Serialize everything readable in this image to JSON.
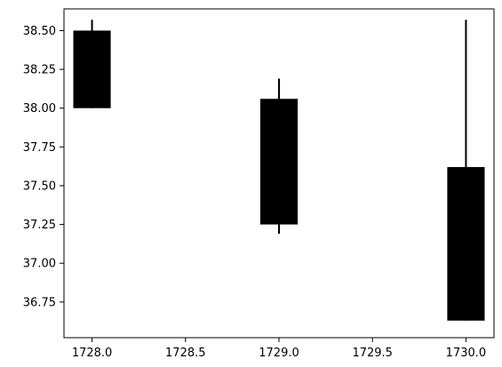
{
  "chart_data": {
    "type": "candlestick",
    "title": "",
    "xlabel": "",
    "ylabel": "",
    "xlim": [
      1727.85,
      1730.15
    ],
    "ylim": [
      36.52,
      38.64
    ],
    "x_ticks": [
      1728.0,
      1728.5,
      1729.0,
      1729.5,
      1730.0
    ],
    "x_tick_labels": [
      "1728.0",
      "1728.5",
      "1729.0",
      "1729.5",
      "1730.0"
    ],
    "y_ticks": [
      36.75,
      37.0,
      37.25,
      37.5,
      37.75,
      38.0,
      38.25,
      38.5
    ],
    "y_tick_labels": [
      "36.75",
      "37.00",
      "37.25",
      "37.50",
      "37.75",
      "38.00",
      "38.25",
      "38.50"
    ],
    "body_width": 0.2,
    "color": "#000000",
    "grid": false,
    "legend": false,
    "candles": [
      {
        "x": 1728.0,
        "open": 38.0,
        "close": 38.5,
        "high": 38.57,
        "low": 38.0
      },
      {
        "x": 1729.0,
        "open": 38.06,
        "close": 37.25,
        "high": 38.19,
        "low": 37.19
      },
      {
        "x": 1730.0,
        "open": 37.62,
        "close": 36.63,
        "high": 38.57,
        "low": 36.63
      }
    ]
  }
}
